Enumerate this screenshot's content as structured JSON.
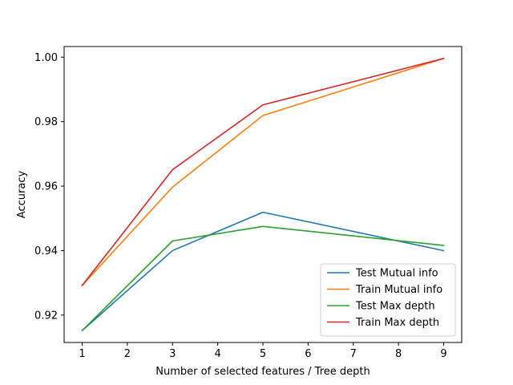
{
  "chart_data": {
    "type": "line",
    "title": "",
    "xlabel": "Number of selected features / Tree depth",
    "ylabel": "Accuracy",
    "x": [
      1,
      3,
      5,
      9
    ],
    "xlim": [
      0.6,
      9.4
    ],
    "ylim": [
      0.9115,
      1.0033
    ],
    "xticks": [
      1,
      2,
      3,
      4,
      5,
      6,
      7,
      8,
      9
    ],
    "yticks": [
      0.92,
      0.94,
      0.96,
      0.98,
      1.0
    ],
    "ytick_labels": [
      "0.92",
      "0.94",
      "0.96",
      "0.98",
      "1.00"
    ],
    "grid": false,
    "legend_position": "lower-right",
    "series": [
      {
        "name": "Test Mutual info",
        "color": "#1f77b4",
        "values": [
          0.9152,
          0.94,
          0.9519,
          0.94
        ]
      },
      {
        "name": "Train Mutual info",
        "color": "#ff7f0e",
        "values": [
          0.9292,
          0.9597,
          0.9819,
          0.9996
        ]
      },
      {
        "name": "Test Max depth",
        "color": "#2ca02c",
        "values": [
          0.9152,
          0.943,
          0.9475,
          0.9416
        ]
      },
      {
        "name": "Train Max depth",
        "color": "#d62728",
        "values": [
          0.9292,
          0.9651,
          0.9852,
          0.9996
        ]
      }
    ]
  }
}
